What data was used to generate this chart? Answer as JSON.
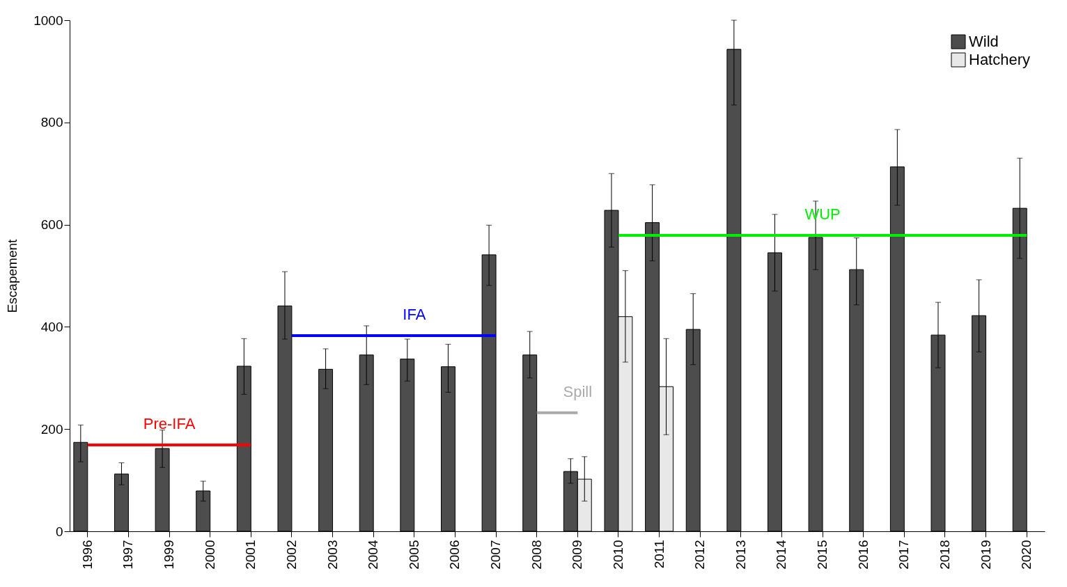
{
  "chart_data": {
    "type": "bar",
    "ylabel": "Escapement",
    "categories": [
      "1996",
      "1997",
      "1999",
      "2000",
      "2001",
      "2002",
      "2003",
      "2004",
      "2005",
      "2006",
      "2007",
      "2008",
      "2009",
      "2010",
      "2011",
      "2012",
      "2013",
      "2014",
      "2015",
      "2016",
      "2017",
      "2018",
      "2019",
      "2020"
    ],
    "series": [
      {
        "name": "Wild",
        "color": "#4d4d4d",
        "values": [
          174,
          112,
          162,
          79,
          323,
          441,
          317,
          345,
          337,
          322,
          541,
          345,
          117,
          628,
          604,
          395,
          943,
          545,
          575,
          512,
          713,
          384,
          422,
          632
        ],
        "errors": [
          [
            136,
            208
          ],
          [
            91,
            134
          ],
          [
            125,
            198
          ],
          [
            59,
            98
          ],
          [
            268,
            377
          ],
          [
            376,
            508
          ],
          [
            279,
            357
          ],
          [
            287,
            402
          ],
          [
            294,
            376
          ],
          [
            272,
            366
          ],
          [
            481,
            599
          ],
          [
            300,
            391
          ],
          [
            94,
            142
          ],
          [
            556,
            700
          ],
          [
            529,
            678
          ],
          [
            326,
            465
          ],
          [
            834,
            1000
          ],
          [
            470,
            620
          ],
          [
            512,
            646
          ],
          [
            443,
            574
          ],
          [
            638,
            786
          ],
          [
            320,
            448
          ],
          [
            351,
            492
          ],
          [
            534,
            730
          ]
        ]
      },
      {
        "name": "Hatchery",
        "color": "#e8e8e8",
        "values": [
          null,
          null,
          null,
          null,
          null,
          null,
          null,
          null,
          null,
          null,
          null,
          null,
          102,
          420,
          283,
          null,
          null,
          null,
          null,
          null,
          null,
          null,
          null,
          null
        ],
        "errors": [
          null,
          null,
          null,
          null,
          null,
          null,
          null,
          null,
          null,
          null,
          null,
          null,
          [
            59,
            146
          ],
          [
            331,
            510
          ],
          [
            189,
            377
          ],
          null,
          null,
          null,
          null,
          null,
          null,
          null,
          null,
          null
        ]
      },
      {
        "name": "Pre-IFA",
        "type": "line",
        "color": "#ff0000",
        "values": [
          169,
          169,
          169,
          169,
          169,
          null,
          null,
          null,
          null,
          null,
          null,
          null,
          null,
          null,
          null,
          null,
          null,
          null,
          null,
          null,
          null,
          null,
          null,
          null
        ]
      },
      {
        "name": "IFA",
        "type": "line",
        "color": "#0000ff",
        "values": [
          null,
          null,
          null,
          null,
          null,
          383,
          383,
          383,
          383,
          383,
          383,
          null,
          null,
          null,
          null,
          null,
          null,
          null,
          null,
          null,
          null,
          null,
          null,
          null
        ]
      },
      {
        "name": "Spill",
        "type": "line",
        "color": "#aaaaaa",
        "values": [
          null,
          null,
          null,
          null,
          null,
          null,
          null,
          null,
          null,
          null,
          null,
          232,
          232,
          null,
          null,
          null,
          null,
          null,
          null,
          null,
          null,
          null,
          null,
          null
        ]
      },
      {
        "name": "WUP",
        "type": "line",
        "color": "#00ee00",
        "values": [
          null,
          null,
          null,
          null,
          null,
          null,
          null,
          null,
          null,
          null,
          null,
          null,
          null,
          579,
          579,
          579,
          579,
          579,
          579,
          579,
          579,
          579,
          579,
          579
        ]
      }
    ],
    "ylim": [
      0,
      1000
    ],
    "yticks": [
      0,
      200,
      400,
      600,
      800,
      1000
    ],
    "grid": false,
    "legend": "top right"
  }
}
